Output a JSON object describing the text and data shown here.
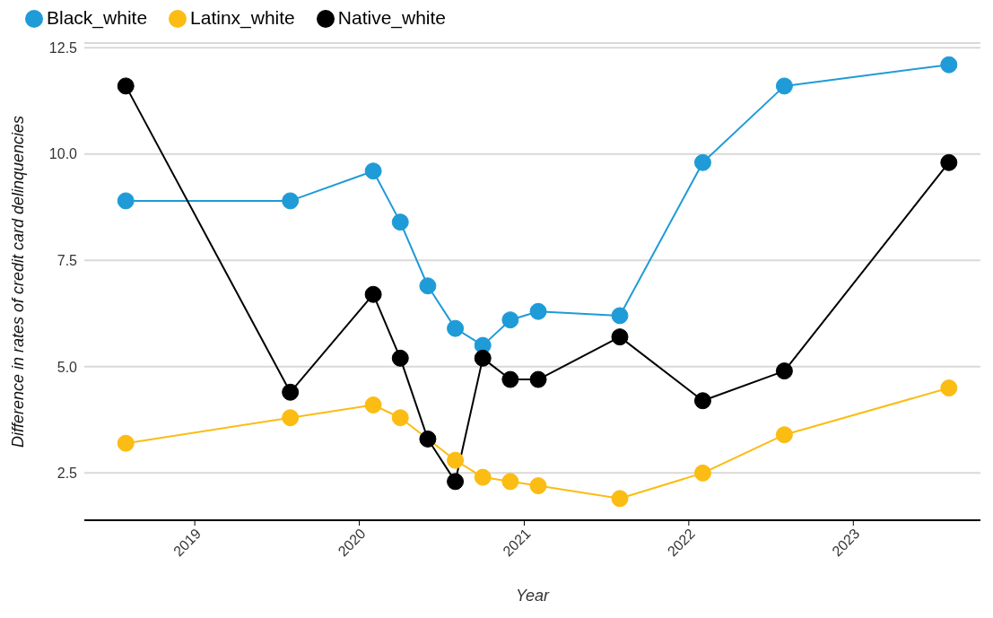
{
  "chart_data": {
    "type": "line",
    "xlabel": "Year",
    "ylabel": "Difference in rates of credit card delinquencies",
    "x": [
      "2018-08",
      "2019-08",
      "2020-02",
      "2020-04",
      "2020-06",
      "2020-08",
      "2020-10",
      "2020-12",
      "2021-02",
      "2021-08",
      "2022-02",
      "2022-08",
      "2023-08"
    ],
    "series": [
      {
        "name": "Black_white",
        "color": "#1f9bd7",
        "values": [
          8.9,
          8.9,
          9.6,
          8.4,
          6.9,
          5.9,
          5.5,
          6.1,
          6.3,
          6.2,
          9.8,
          11.6,
          12.1
        ]
      },
      {
        "name": "Latinx_white",
        "color": "#fbbc13",
        "values": [
          3.2,
          3.8,
          4.1,
          3.8,
          null,
          2.8,
          2.4,
          2.3,
          2.2,
          1.9,
          2.5,
          3.4,
          4.5
        ]
      },
      {
        "name": "Native_white",
        "color": "#000000",
        "values": [
          11.6,
          4.4,
          6.7,
          5.2,
          3.3,
          2.3,
          5.2,
          4.7,
          4.7,
          5.7,
          4.2,
          4.9,
          9.8
        ]
      }
    ],
    "xlim": [
      "2018-05-01",
      "2023-10-10"
    ],
    "xticks": [
      "2019",
      "2020",
      "2021",
      "2022",
      "2023"
    ],
    "ylim": [
      1.39,
      12.61
    ],
    "yticks": [
      {
        "value": 2.5,
        "label": "2.5"
      },
      {
        "value": 5,
        "label": "5.0"
      },
      {
        "value": 7.5,
        "label": "7.5"
      },
      {
        "value": 10,
        "label": "10.0"
      },
      {
        "value": 12.5,
        "label": "12.5"
      }
    ],
    "grid": "y",
    "legend": "top left",
    "marker": "circle",
    "line_style": "solid"
  }
}
